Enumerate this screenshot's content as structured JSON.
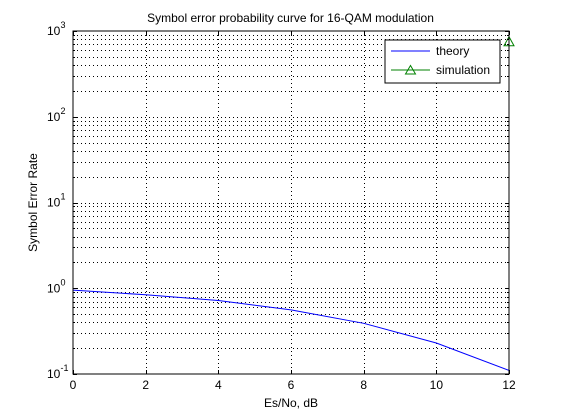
{
  "chart_data": {
    "type": "line",
    "title": "Symbol error probability curve for 16-QAM modulation",
    "xlabel": "Es/No, dB",
    "ylabel": "Symbol Error Rate",
    "xlim": [
      0,
      12
    ],
    "ylim": [
      0.1,
      1000
    ],
    "yscale": "log",
    "grid": true,
    "legend": "top-right",
    "xticks": [
      "0",
      "2",
      "4",
      "6",
      "8",
      "10",
      "12"
    ],
    "yticks": [
      {
        "base": "10",
        "exp": "-1"
      },
      {
        "base": "10",
        "exp": "0"
      },
      {
        "base": "10",
        "exp": "1"
      },
      {
        "base": "10",
        "exp": "2"
      },
      {
        "base": "10",
        "exp": "3"
      }
    ],
    "series": [
      {
        "name": "theory",
        "color": "#0000ff",
        "marker": "none",
        "x": [
          0,
          2,
          4,
          6,
          8,
          10,
          12
        ],
        "y": [
          0.95,
          0.84,
          0.72,
          0.56,
          0.39,
          0.23,
          0.11
        ]
      },
      {
        "name": "simulation",
        "color": "#008000",
        "marker": "triangle",
        "x": [
          12
        ],
        "y": [
          750
        ]
      }
    ]
  }
}
